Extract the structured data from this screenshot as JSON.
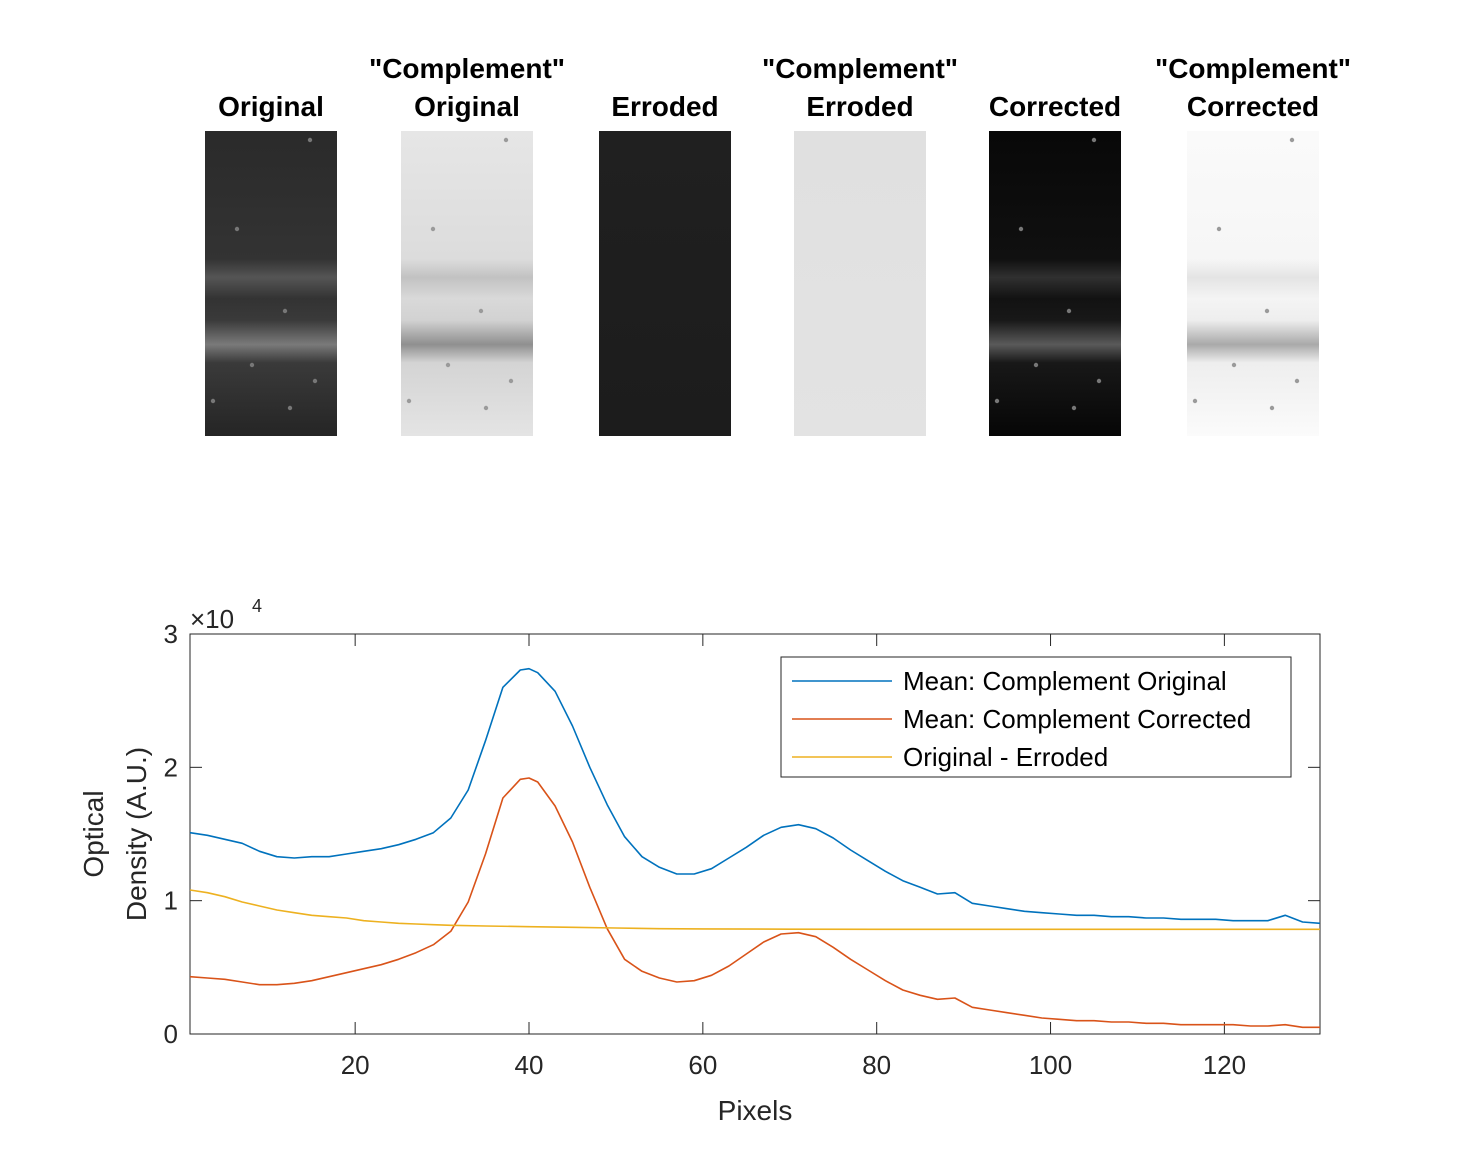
{
  "panels": [
    {
      "line1": "",
      "line2": "Original",
      "tone": "dark"
    },
    {
      "line1": "\"Complement\"",
      "line2": "Original",
      "tone": "light"
    },
    {
      "line1": "",
      "line2": "Erroded",
      "tone": "dark-flat"
    },
    {
      "line1": "\"Complement\"",
      "line2": "Erroded",
      "tone": "light-flat"
    },
    {
      "line1": "",
      "line2": "Corrected",
      "tone": "black"
    },
    {
      "line1": "\"Complement\"",
      "line2": "Corrected",
      "tone": "white"
    }
  ],
  "chart_data": {
    "type": "line",
    "xlabel": "Pixels",
    "ylabel_line1": "Optical",
    "ylabel_line2": "Density (A.U.)",
    "exponent_label": "×10",
    "exponent_power": "4",
    "xlim": [
      1,
      131
    ],
    "ylim": [
      0,
      30000
    ],
    "xticks": [
      20,
      40,
      60,
      80,
      100,
      120
    ],
    "yticks": [
      0,
      10000,
      20000,
      30000
    ],
    "ytick_labels": [
      "0",
      "1",
      "2",
      "3"
    ],
    "legend_position": "top-right",
    "series": [
      {
        "name": "Mean: Complement Original",
        "color": "#0072BD",
        "x": [
          1,
          3,
          5,
          7,
          9,
          11,
          13,
          15,
          17,
          19,
          21,
          23,
          25,
          27,
          29,
          31,
          33,
          35,
          37,
          39,
          40,
          41,
          43,
          45,
          47,
          49,
          51,
          53,
          55,
          57,
          59,
          61,
          63,
          65,
          67,
          69,
          71,
          73,
          75,
          77,
          79,
          81,
          83,
          85,
          87,
          89,
          91,
          93,
          95,
          97,
          99,
          101,
          103,
          105,
          107,
          109,
          111,
          113,
          115,
          117,
          119,
          121,
          123,
          125,
          127,
          129,
          131
        ],
        "y": [
          15100,
          14900,
          14600,
          14300,
          13700,
          13300,
          13200,
          13300,
          13300,
          13500,
          13700,
          13900,
          14200,
          14600,
          15100,
          16200,
          18300,
          22000,
          26000,
          27300,
          27400,
          27100,
          25700,
          23100,
          20000,
          17200,
          14800,
          13300,
          12500,
          12000,
          12000,
          12400,
          13200,
          14000,
          14900,
          15500,
          15700,
          15400,
          14700,
          13800,
          13000,
          12200,
          11500,
          11000,
          10500,
          10600,
          9800,
          9600,
          9400,
          9200,
          9100,
          9000,
          8900,
          8900,
          8800,
          8800,
          8700,
          8700,
          8600,
          8600,
          8600,
          8500,
          8500,
          8500,
          8900,
          8400,
          8300
        ]
      },
      {
        "name": "Mean: Complement Corrected",
        "color": "#D95319",
        "x": [
          1,
          3,
          5,
          7,
          9,
          11,
          13,
          15,
          17,
          19,
          21,
          23,
          25,
          27,
          29,
          31,
          33,
          35,
          37,
          39,
          40,
          41,
          43,
          45,
          47,
          49,
          51,
          53,
          55,
          57,
          59,
          61,
          63,
          65,
          67,
          69,
          71,
          73,
          75,
          77,
          79,
          81,
          83,
          85,
          87,
          89,
          91,
          93,
          95,
          97,
          99,
          101,
          103,
          105,
          107,
          109,
          111,
          113,
          115,
          117,
          119,
          121,
          123,
          125,
          127,
          129,
          131
        ],
        "y": [
          4300,
          4200,
          4100,
          3900,
          3700,
          3700,
          3800,
          4000,
          4300,
          4600,
          4900,
          5200,
          5600,
          6100,
          6700,
          7700,
          9900,
          13500,
          17700,
          19100,
          19200,
          18900,
          17100,
          14400,
          11000,
          7900,
          5600,
          4700,
          4200,
          3900,
          4000,
          4400,
          5100,
          6000,
          6900,
          7500,
          7600,
          7300,
          6500,
          5600,
          4800,
          4000,
          3300,
          2900,
          2600,
          2700,
          2000,
          1800,
          1600,
          1400,
          1200,
          1100,
          1000,
          1000,
          900,
          900,
          800,
          800,
          700,
          700,
          700,
          700,
          600,
          600,
          700,
          500,
          500
        ]
      },
      {
        "name": "Original - Erroded",
        "color": "#EDB120",
        "x": [
          1,
          3,
          5,
          7,
          9,
          11,
          13,
          15,
          17,
          19,
          21,
          23,
          25,
          27,
          29,
          31,
          35,
          40,
          45,
          50,
          55,
          60,
          70,
          80,
          90,
          100,
          110,
          120,
          131
        ],
        "y": [
          10800,
          10600,
          10300,
          9900,
          9600,
          9300,
          9100,
          8900,
          8800,
          8700,
          8500,
          8400,
          8300,
          8250,
          8200,
          8150,
          8100,
          8050,
          8000,
          7950,
          7900,
          7880,
          7860,
          7850,
          7850,
          7850,
          7850,
          7850,
          7850
        ]
      }
    ]
  }
}
